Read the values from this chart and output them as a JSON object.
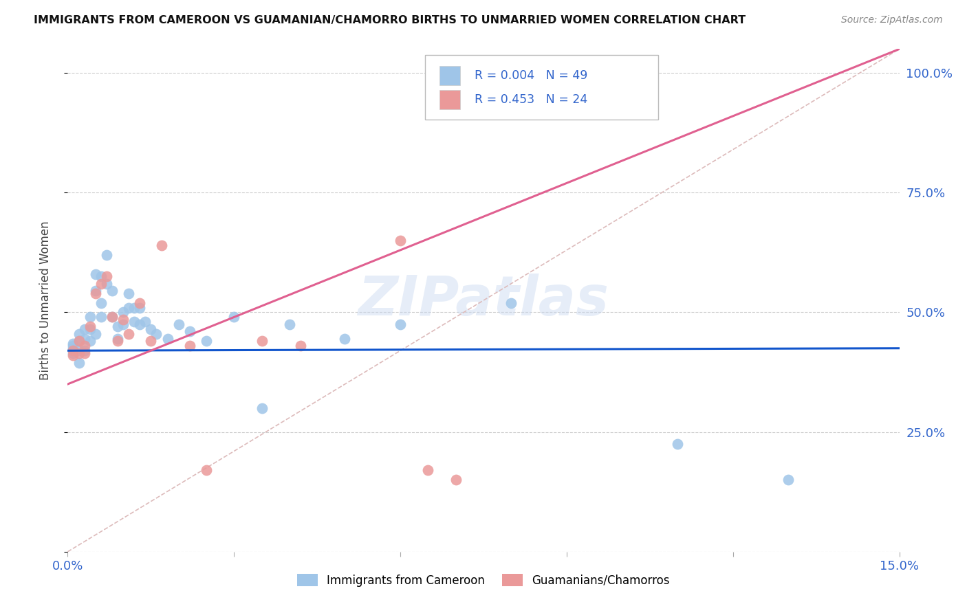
{
  "title": "IMMIGRANTS FROM CAMEROON VS GUAMANIAN/CHAMORRO BIRTHS TO UNMARRIED WOMEN CORRELATION CHART",
  "source": "Source: ZipAtlas.com",
  "ylabel": "Births to Unmarried Women",
  "xlim": [
    0.0,
    0.15
  ],
  "ylim": [
    0.0,
    1.05
  ],
  "watermark": "ZIPatlas",
  "blue_color": "#9fc5e8",
  "pink_color": "#ea9999",
  "blue_line_color": "#1155cc",
  "pink_line_color": "#e06090",
  "dashed_line_color": "#ddbbbb",
  "right_tick_color": "#3366cc",
  "R_blue": 0.004,
  "N_blue": 49,
  "R_pink": 0.453,
  "N_pink": 24,
  "legend_label_blue": "Immigrants from Cameroon",
  "legend_label_pink": "Guamanians/Chamorros",
  "background_color": "#ffffff",
  "grid_color": "#cccccc",
  "blue_scatter_x": [
    0.001,
    0.001,
    0.001,
    0.001,
    0.002,
    0.002,
    0.002,
    0.002,
    0.003,
    0.003,
    0.003,
    0.004,
    0.004,
    0.004,
    0.005,
    0.005,
    0.005,
    0.006,
    0.006,
    0.006,
    0.007,
    0.007,
    0.008,
    0.008,
    0.009,
    0.009,
    0.01,
    0.01,
    0.011,
    0.011,
    0.012,
    0.012,
    0.013,
    0.013,
    0.014,
    0.015,
    0.016,
    0.018,
    0.02,
    0.022,
    0.025,
    0.03,
    0.035,
    0.04,
    0.05,
    0.06,
    0.08,
    0.11,
    0.13
  ],
  "blue_scatter_y": [
    0.435,
    0.43,
    0.425,
    0.415,
    0.455,
    0.44,
    0.42,
    0.395,
    0.465,
    0.445,
    0.42,
    0.49,
    0.465,
    0.44,
    0.58,
    0.545,
    0.455,
    0.575,
    0.52,
    0.49,
    0.62,
    0.56,
    0.545,
    0.49,
    0.47,
    0.445,
    0.5,
    0.475,
    0.54,
    0.51,
    0.51,
    0.48,
    0.51,
    0.475,
    0.48,
    0.465,
    0.455,
    0.445,
    0.475,
    0.46,
    0.44,
    0.49,
    0.3,
    0.475,
    0.445,
    0.475,
    0.52,
    0.225,
    0.15
  ],
  "pink_scatter_x": [
    0.001,
    0.001,
    0.002,
    0.002,
    0.003,
    0.003,
    0.004,
    0.005,
    0.006,
    0.007,
    0.008,
    0.009,
    0.01,
    0.011,
    0.013,
    0.015,
    0.017,
    0.022,
    0.025,
    0.035,
    0.042,
    0.06,
    0.065,
    0.07
  ],
  "pink_scatter_y": [
    0.42,
    0.41,
    0.44,
    0.415,
    0.43,
    0.415,
    0.47,
    0.54,
    0.56,
    0.575,
    0.49,
    0.44,
    0.485,
    0.455,
    0.52,
    0.44,
    0.64,
    0.43,
    0.17,
    0.44,
    0.43,
    0.65,
    0.17,
    0.15
  ],
  "blue_trendline_x": [
    0.0,
    0.15
  ],
  "blue_trendline_y": [
    0.42,
    0.425
  ],
  "pink_trendline_x": [
    0.0,
    0.15
  ],
  "pink_trendline_y": [
    0.35,
    1.05
  ]
}
